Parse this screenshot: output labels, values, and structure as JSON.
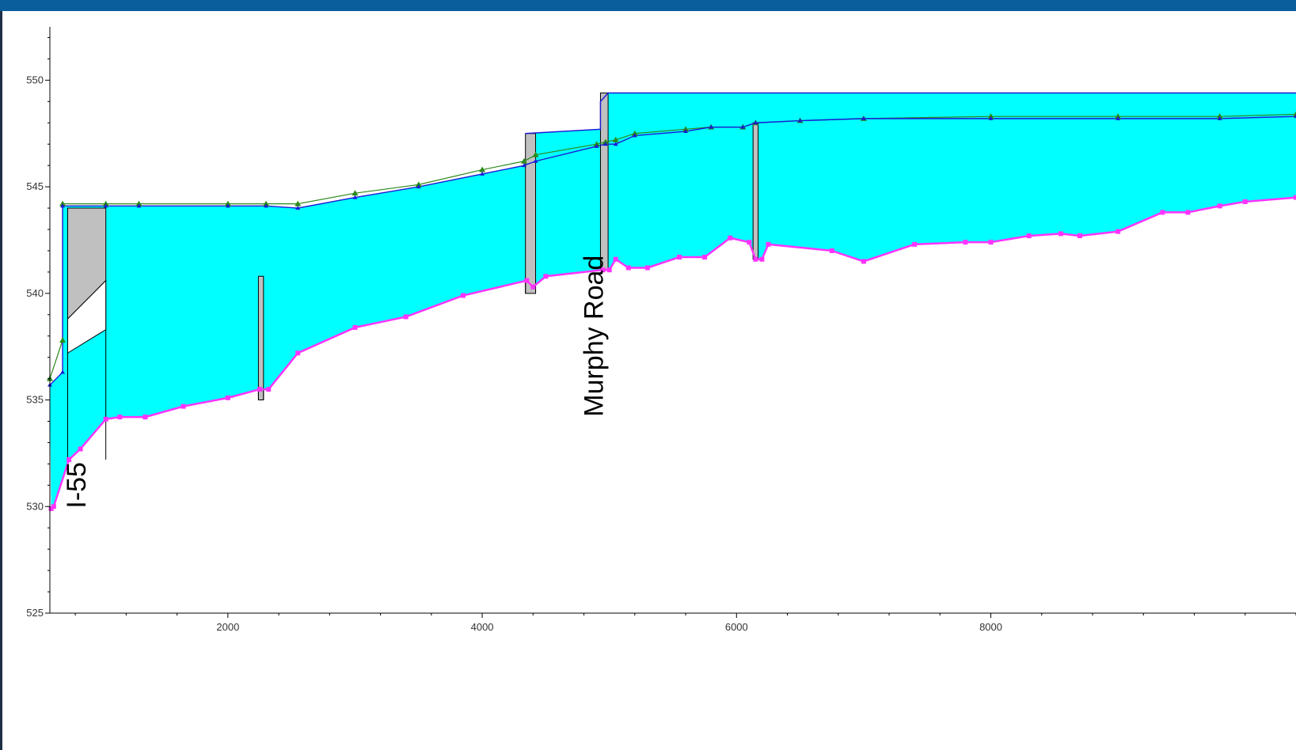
{
  "colors": {
    "header": "#0a5e9c",
    "flow_area": "#00ffff",
    "bridge_deck": "#c0c0c0",
    "channel_bed": "#ff33ff",
    "water_surface": "#1a1ad6",
    "energy_grade": "#2a8a1a",
    "structure_line": "#000000"
  },
  "chart_data": {
    "type": "area",
    "xlim": [
      600,
      10400
    ],
    "ylim": [
      525,
      552.5
    ],
    "x_ticks": [
      2000,
      4000,
      6000,
      8000
    ],
    "y_ticks": [
      525,
      530,
      535,
      540,
      545,
      550
    ],
    "grid": false,
    "series": [
      {
        "role": "water_surface",
        "x": [
          600,
          700,
          700,
          1040,
          1300,
          2000,
          2300,
          2550,
          3000,
          3500,
          4000,
          4330,
          4420,
          4900,
          4970,
          5050,
          5200,
          5600,
          5800,
          6050,
          6150,
          6500,
          7000,
          8000,
          9000,
          9800,
          10400
        ],
        "y": [
          535.7,
          536.3,
          544.1,
          544.1,
          544.1,
          544.1,
          544.1,
          544.0,
          544.5,
          545.0,
          545.6,
          546.0,
          546.2,
          546.9,
          547.0,
          547.0,
          547.4,
          547.6,
          547.8,
          547.8,
          548.0,
          548.1,
          548.2,
          548.2,
          548.2,
          548.2,
          548.3
        ]
      },
      {
        "role": "energy_grade",
        "x": [
          600,
          700,
          700,
          1040,
          1300,
          2000,
          2300,
          2550,
          3000,
          3500,
          4000,
          4330,
          4420,
          4900,
          4970,
          5050,
          5200,
          5600,
          5800,
          6050,
          6150,
          6500,
          7000,
          8000,
          9000,
          9800,
          10400
        ],
        "y": [
          536.0,
          537.8,
          544.2,
          544.2,
          544.2,
          544.2,
          544.2,
          544.2,
          544.7,
          545.1,
          545.8,
          546.2,
          546.5,
          547.0,
          547.1,
          547.2,
          547.5,
          547.7,
          547.8,
          547.8,
          548.0,
          548.1,
          548.2,
          548.3,
          548.3,
          548.3,
          548.4
        ]
      },
      {
        "role": "channel_bed",
        "x": [
          610,
          630,
          750,
          840,
          1040,
          1150,
          1350,
          1650,
          2000,
          2250,
          2320,
          2550,
          3000,
          3400,
          3850,
          4350,
          4400,
          4500,
          4950,
          5000,
          5050,
          5150,
          5300,
          5550,
          5750,
          5950,
          6100,
          6150,
          6200,
          6250,
          6750,
          7000,
          7400,
          7800,
          8000,
          8300,
          8550,
          8700,
          9000,
          9350,
          9550,
          9800,
          10000,
          10400
        ],
        "y": [
          529.9,
          530.0,
          532.2,
          532.7,
          534.1,
          534.2,
          534.2,
          534.7,
          535.1,
          535.5,
          535.5,
          537.2,
          538.4,
          538.9,
          539.9,
          540.6,
          540.3,
          540.8,
          541.1,
          541.1,
          541.6,
          541.2,
          541.2,
          541.7,
          541.7,
          542.6,
          542.4,
          541.6,
          541.6,
          542.3,
          542.0,
          541.5,
          542.3,
          542.4,
          542.4,
          542.7,
          542.8,
          542.7,
          542.9,
          543.8,
          543.8,
          544.1,
          544.3,
          544.5
        ]
      },
      {
        "role": "structure_top",
        "x": [
          4340,
          4930,
          4930,
          4990,
          4990,
          10400
        ],
        "y": [
          547.5,
          547.7,
          549.0,
          549.4,
          549.4,
          549.4
        ]
      }
    ],
    "structures": [
      {
        "x_from": 740,
        "x_to": 1040,
        "deck_top": 544.0,
        "low_chord_left": 538.8,
        "low_chord_right": 540.6
      },
      {
        "x_from": 2240,
        "x_to": 2280,
        "deck_top": 540.8,
        "low_chord_left": 535.0,
        "low_chord_right": 535.0
      },
      {
        "x_from": 4340,
        "x_to": 4420,
        "deck_top": 547.5,
        "low_chord_left": 540.0,
        "low_chord_right": 540.0
      },
      {
        "x_from": 4930,
        "x_to": 4990,
        "deck_top": 549.4,
        "low_chord_left": 541.1,
        "low_chord_right": 541.1
      },
      {
        "x_from": 6130,
        "x_to": 6170,
        "deck_top": 548.0,
        "low_chord_left": 541.6,
        "low_chord_right": 541.6
      }
    ],
    "annotations": [
      {
        "text": "I-55",
        "x": 880,
        "y": 531
      },
      {
        "text": "Murphy Road",
        "x": 4950,
        "y": 538
      }
    ]
  }
}
